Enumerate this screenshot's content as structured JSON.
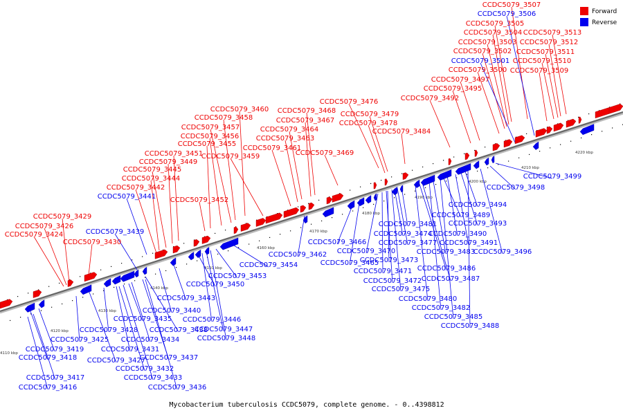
{
  "caption": "Mycobacterium tuberculosis CCDC5079, complete genome. - 0..4398812",
  "legend": [
    {
      "label": "Forward",
      "color": "#ee0000"
    },
    {
      "label": "Reverse",
      "color": "#0000ee"
    }
  ],
  "axis": {
    "ticks": [
      "4110 kbp",
      "4120 kbp",
      "4130 kbp",
      "4140 kbp",
      "4150 kbp",
      "4160 kbp",
      "4170 kbp",
      "4180 kbp",
      "4190 kbp",
      "4200 kbp",
      "4210 kbp",
      "4220 kbp"
    ]
  },
  "forward_labels": [
    "CCDC5079_3507",
    "CCDC5079_3505",
    "CCDC5079_3504",
    "CCDC5079_3503",
    "CCDC5079_3502",
    "CCDC5079_3500",
    "CCDC5079_3497",
    "CCDC5079_3495",
    "CCDC5079_3492",
    "CCDC5079_3513",
    "CCDC5079_3512",
    "CCDC5079_3511",
    "CCDC5079_3510",
    "CCDC5079_3509",
    "CCDC5079_3476",
    "CCDC5079_3479",
    "CCDC5079_3478",
    "CCDC5079_3484",
    "CCDC5079_3460",
    "CCDC5079_3468",
    "CCDC5079_3467",
    "CCDC5079_3458",
    "CCDC5079_3457",
    "CCDC5079_3464",
    "CCDC5079_3456",
    "CCDC5079_3463",
    "CCDC5079_3455",
    "CCDC5079_3461",
    "CCDC5079_3469",
    "CCDC5079_3451",
    "CCDC5079_3459",
    "CCDC5079_3449",
    "CCDC5079_3445",
    "CCDC5079_3444",
    "CCDC5079_3442",
    "CCDC5079_3452",
    "CCDC5079_3429",
    "CCDC5079_3426",
    "CCDC5079_3424",
    "CCDC5079_3430"
  ],
  "reverse_labels_top": [
    "CCDC5079_3506",
    "CCDC5079_3501",
    "CCDC5079_3441",
    "CCDC5079_3439"
  ],
  "reverse_labels": [
    "CCDC5079_3499",
    "CCDC5079_3498",
    "CCDC5079_3494",
    "CCDC5079_3489",
    "CCDC5079_3493",
    "CCDC5079_3481",
    "CCDC5079_3490",
    "CCDC5079_3474",
    "CCDC5079_3491",
    "CCDC5079_3477",
    "CCDC5079_3466",
    "CCDC5079_3470",
    "CCDC5079_3483",
    "CCDC5079_3496",
    "CCDC5079_3462",
    "CCDC5079_3465",
    "CCDC5079_3473",
    "CCDC5079_3454",
    "CCDC5079_3486",
    "CCDC5079_3471",
    "CCDC5079_3453",
    "CCDC5079_3487",
    "CCDC5079_3472",
    "CCDC5079_3450",
    "CCDC5079_3475",
    "CCDC5079_3480",
    "CCDC5079_3443",
    "CCDC5079_3482",
    "CCDC5079_3485",
    "CCDC5079_3440",
    "CCDC5079_3488",
    "CCDC5079_3446",
    "CCDC5079_3435",
    "CCDC5079_3447",
    "CCDC5079_3428",
    "CCDC5079_3438",
    "CCDC5079_3448",
    "CCDC5079_3425",
    "CCDC5079_3434",
    "CCDC5079_3419",
    "CCDC5079_3431",
    "CCDC5079_3418",
    "CCDC5079_3427",
    "CCDC5079_3437",
    "CCDC5079_3432",
    "CCDC5079_3417",
    "CCDC5079_3433",
    "CCDC5079_3416",
    "CCDC5079_3436"
  ]
}
